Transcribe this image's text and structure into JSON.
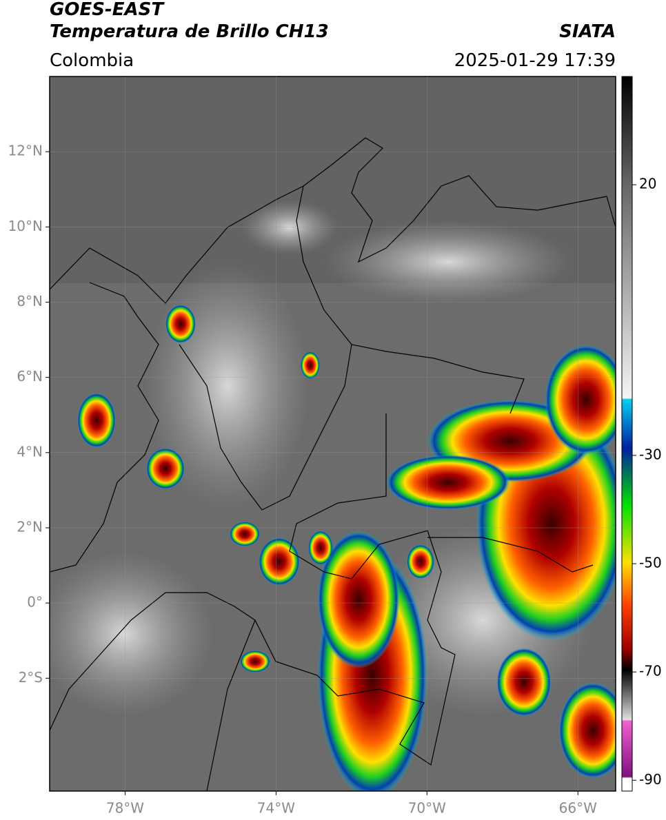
{
  "header": {
    "title": "GOES-EAST",
    "subtitle": "Temperatura de Brillo CH13",
    "region": "Colombia",
    "source": "SIATA",
    "timestamp": "2025-01-29 17:39"
  },
  "map": {
    "xlim": [
      -80,
      -65
    ],
    "ylim": [
      -5,
      14
    ],
    "xticks": [
      {
        "value": -78,
        "label": "78°W"
      },
      {
        "value": -74,
        "label": "74°W"
      },
      {
        "value": -70,
        "label": "70°W"
      },
      {
        "value": -66,
        "label": "66°W"
      }
    ],
    "yticks": [
      {
        "value": 12,
        "label": "12°N"
      },
      {
        "value": 10,
        "label": "10°N"
      },
      {
        "value": 8,
        "label": "8°N"
      },
      {
        "value": 6,
        "label": "6°N"
      },
      {
        "value": 4,
        "label": "4°N"
      },
      {
        "value": 2,
        "label": "2°N"
      },
      {
        "value": 0,
        "label": "0°"
      },
      {
        "value": -2,
        "label": "2°S"
      }
    ]
  },
  "colorbar": {
    "lim": [
      -92,
      40
    ],
    "ticks": [
      20,
      -30,
      -50,
      -70,
      -90
    ]
  }
}
